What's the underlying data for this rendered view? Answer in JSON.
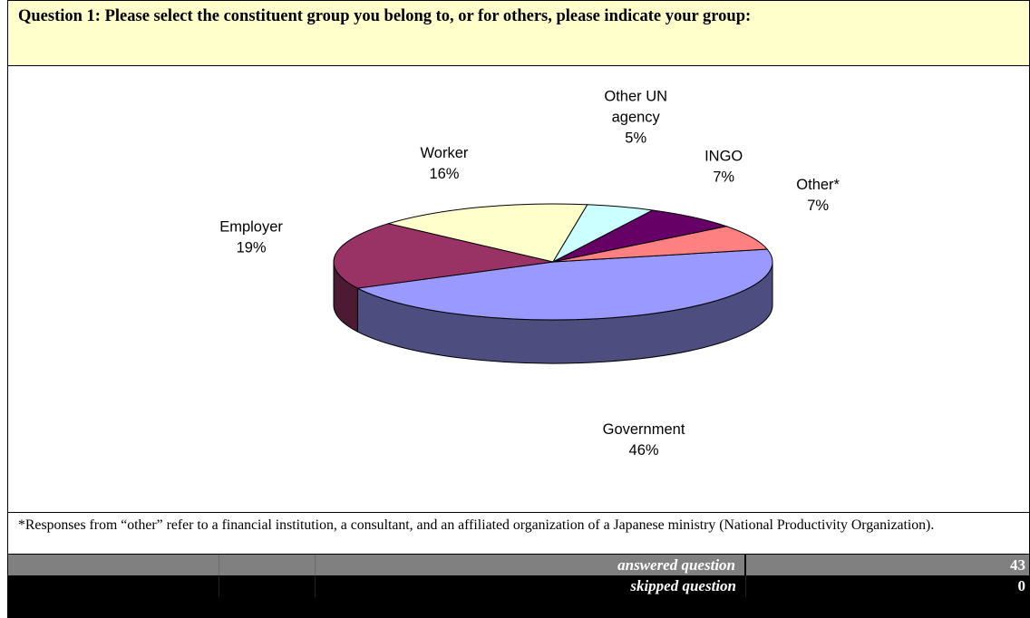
{
  "question": {
    "title": "Question 1: Please select the constituent group you belong to, or for others, please indicate your group:"
  },
  "chart_data": {
    "type": "pie",
    "title": "",
    "slices": [
      {
        "label": [
          "Government"
        ],
        "value": 46,
        "pct_text": "46%",
        "color": "#9999ff"
      },
      {
        "label": [
          "Employer"
        ],
        "value": 19,
        "pct_text": "19%",
        "color": "#993366"
      },
      {
        "label": [
          "Worker"
        ],
        "value": 16,
        "pct_text": "16%",
        "color": "#ffffcc"
      },
      {
        "label": [
          "Other UN",
          "agency"
        ],
        "value": 5,
        "pct_text": "5%",
        "color": "#ccffff"
      },
      {
        "label": [
          "INGO"
        ],
        "value": 7,
        "pct_text": "7%",
        "color": "#660066"
      },
      {
        "label": [
          "Other*"
        ],
        "value": 7,
        "pct_text": "7%",
        "color": "#ff8080"
      }
    ],
    "style": "3d-exploded-none"
  },
  "footnote": "*Responses from “other” refer to a financial institution, a consultant, and an affiliated organization of a Japanese ministry (National Productivity Organization).",
  "summary": {
    "answered_label": "answered question",
    "answered_value": "43",
    "skipped_label": "skipped question",
    "skipped_value": "0"
  }
}
